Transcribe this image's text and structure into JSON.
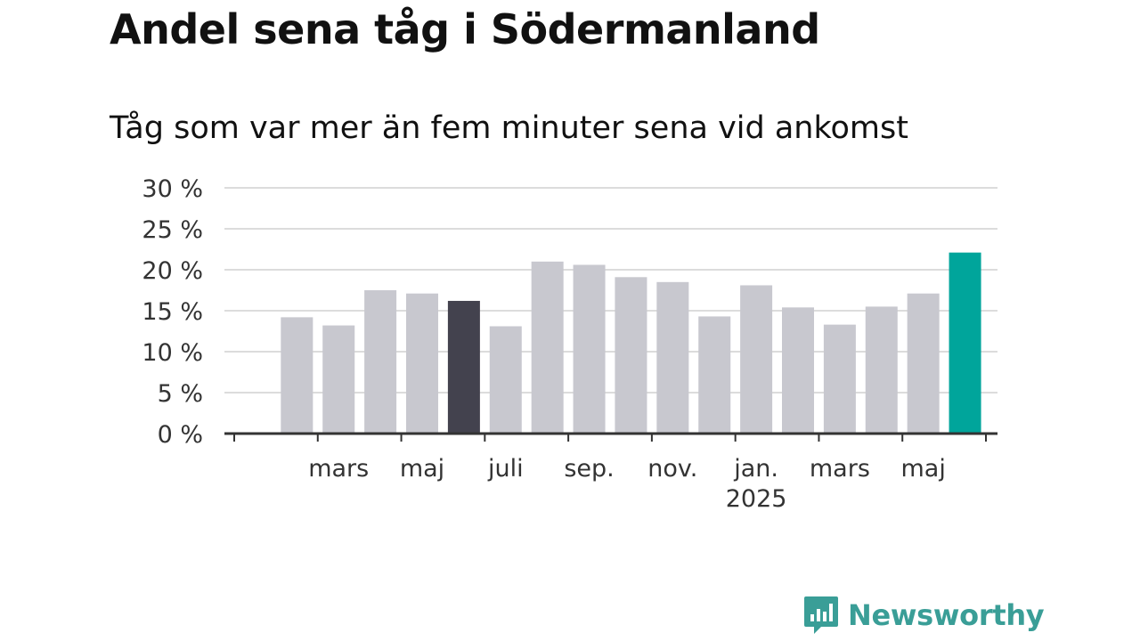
{
  "title": "Andel sena tåg i Södermanland",
  "subtitle": "Tåg som var mer än fem minuter sena vid ankomst",
  "brand": {
    "name": "Newsworthy",
    "icon": "newsworthy-logo-icon"
  },
  "colors": {
    "bar_default": "#c8c8cf",
    "bar_highlight_dark": "#43424e",
    "bar_highlight_accent": "#00a59b",
    "grid": "#dcdcdc",
    "axis": "#333333",
    "brand": "#3a9e97"
  },
  "chart_data": {
    "type": "bar",
    "title": "Andel sena tåg i Södermanland",
    "subtitle": "Tåg som var mer än fem minuter sena vid ankomst",
    "xlabel": "",
    "ylabel": "",
    "ylim": [
      0,
      30
    ],
    "yticks": [
      0,
      5,
      10,
      15,
      20,
      25,
      30
    ],
    "ytick_labels": [
      "0 %",
      "5 %",
      "10 %",
      "15 %",
      "20 %",
      "25 %",
      "30 %"
    ],
    "grid": true,
    "categories": [
      "2024-02",
      "2024-03",
      "2024-04",
      "2024-05",
      "2024-06",
      "2024-07",
      "2024-08",
      "2024-09",
      "2024-10",
      "2024-11",
      "2024-12",
      "2025-01",
      "2025-02",
      "2025-03",
      "2025-04",
      "2025-05",
      "2025-06"
    ],
    "values": [
      14.2,
      13.2,
      17.5,
      17.1,
      16.2,
      13.1,
      21.0,
      20.6,
      19.1,
      18.5,
      14.3,
      18.1,
      15.4,
      13.3,
      15.5,
      17.1,
      22.1
    ],
    "highlight": {
      "2024-06": "dark",
      "2025-06": "accent"
    },
    "x_tick_labels": [
      {
        "category": "2024-03",
        "label": "mars"
      },
      {
        "category": "2024-05",
        "label": "maj"
      },
      {
        "category": "2024-07",
        "label": "juli"
      },
      {
        "category": "2024-09",
        "label": "sep."
      },
      {
        "category": "2024-11",
        "label": "nov."
      },
      {
        "category": "2025-01",
        "label": "jan.",
        "sublabel": "2025"
      },
      {
        "category": "2025-03",
        "label": "mars"
      },
      {
        "category": "2025-05",
        "label": "maj"
      }
    ]
  }
}
